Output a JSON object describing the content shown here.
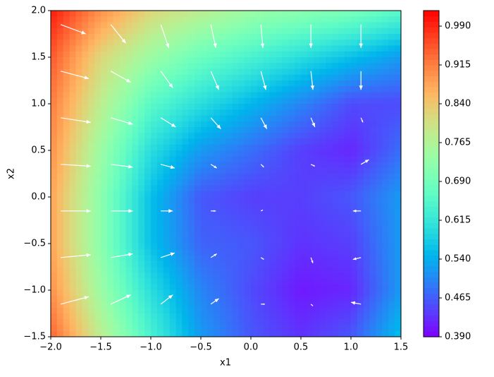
{
  "chart_data": {
    "type": "contour",
    "xlabel": "x1",
    "ylabel": "x2",
    "xlim": [
      -2,
      1.5
    ],
    "ylim": [
      -1.5,
      2
    ],
    "xticks": [
      {
        "value": -2,
        "label": "−2.0"
      },
      {
        "value": -1.5,
        "label": "−1.5"
      },
      {
        "value": -1,
        "label": "−1.0"
      },
      {
        "value": -0.5,
        "label": "−0.5"
      },
      {
        "value": 0,
        "label": "0.0"
      },
      {
        "value": 0.5,
        "label": "0.5"
      },
      {
        "value": 1,
        "label": "1.0"
      },
      {
        "value": 1.5,
        "label": "1.5"
      }
    ],
    "yticks": [
      {
        "value": -1.5,
        "label": "−1.5"
      },
      {
        "value": -1,
        "label": "−1.0"
      },
      {
        "value": -0.5,
        "label": "−0.5"
      },
      {
        "value": 0,
        "label": "0.0"
      },
      {
        "value": 0.5,
        "label": "0.5"
      },
      {
        "value": 1,
        "label": "1.0"
      },
      {
        "value": 1.5,
        "label": "1.5"
      },
      {
        "value": 2,
        "label": "2.0"
      }
    ],
    "colormap": "rainbow",
    "clim": [
      0.39,
      1.02
    ],
    "cticks": [
      {
        "value": 0.39,
        "label": "0.390"
      },
      {
        "value": 0.465,
        "label": "0.465"
      },
      {
        "value": 0.54,
        "label": "0.540"
      },
      {
        "value": 0.615,
        "label": "0.615"
      },
      {
        "value": 0.69,
        "label": "0.690"
      },
      {
        "value": 0.765,
        "label": "0.765"
      },
      {
        "value": 0.84,
        "label": "0.840"
      },
      {
        "value": 0.915,
        "label": "0.915"
      },
      {
        "value": 0.99,
        "label": "0.990"
      }
    ],
    "grid_x": [
      -2,
      -1.5,
      -1,
      -0.5,
      0,
      0.5,
      1,
      1.5
    ],
    "grid_y": [
      2,
      1.5,
      1,
      0.5,
      0,
      -0.5,
      -1,
      -1.5
    ],
    "z": [
      [
        1.0,
        0.9,
        0.82,
        0.78,
        0.74,
        0.72,
        0.7,
        0.66
      ],
      [
        0.95,
        0.82,
        0.74,
        0.68,
        0.64,
        0.6,
        0.56,
        0.52
      ],
      [
        0.92,
        0.78,
        0.66,
        0.6,
        0.55,
        0.5,
        0.45,
        0.45
      ],
      [
        0.9,
        0.74,
        0.6,
        0.52,
        0.48,
        0.44,
        0.42,
        0.48
      ],
      [
        0.88,
        0.72,
        0.56,
        0.46,
        0.44,
        0.44,
        0.46,
        0.52
      ],
      [
        0.88,
        0.72,
        0.56,
        0.47,
        0.46,
        0.43,
        0.44,
        0.52
      ],
      [
        0.9,
        0.74,
        0.6,
        0.5,
        0.45,
        0.41,
        0.42,
        0.52
      ],
      [
        0.94,
        0.78,
        0.64,
        0.52,
        0.46,
        0.43,
        0.46,
        0.56
      ]
    ],
    "quiver": {
      "color": "#ffffff",
      "x": [
        -1.9,
        -1.4,
        -0.9,
        -0.4,
        0.1,
        0.6,
        1.1
      ],
      "y": [
        1.85,
        1.35,
        0.85,
        0.35,
        -0.15,
        -0.65,
        -1.15
      ],
      "u": [
        [
          0.25,
          0.15,
          0.08,
          0.05,
          0.02,
          0,
          0
        ],
        [
          0.28,
          0.2,
          0.12,
          0.08,
          0.05,
          0.02,
          0
        ],
        [
          0.3,
          0.22,
          0.15,
          0.1,
          0.06,
          0.04,
          0.02
        ],
        [
          0.3,
          0.22,
          0.14,
          0.06,
          0.03,
          0.04,
          0.08
        ],
        [
          0.3,
          0.22,
          0.12,
          0.05,
          0.02,
          0,
          -0.08
        ],
        [
          0.3,
          0.22,
          0.14,
          0.06,
          0.03,
          0.02,
          -0.08
        ],
        [
          0.28,
          0.2,
          0.12,
          0.08,
          0.04,
          0.02,
          -0.1
        ]
      ],
      "v": [
        [
          -0.1,
          -0.2,
          -0.25,
          -0.25,
          -0.25,
          -0.25,
          -0.25
        ],
        [
          -0.08,
          -0.12,
          -0.18,
          -0.2,
          -0.2,
          -0.2,
          -0.2
        ],
        [
          -0.05,
          -0.07,
          -0.1,
          -0.12,
          -0.12,
          -0.1,
          -0.05
        ],
        [
          -0.02,
          -0.03,
          -0.04,
          -0.04,
          -0.03,
          -0.02,
          0.05
        ],
        [
          0,
          0,
          0,
          0,
          0.01,
          0,
          0
        ],
        [
          0.03,
          0.04,
          0.05,
          0.04,
          -0.02,
          -0.06,
          -0.02
        ],
        [
          0.08,
          0.1,
          0.1,
          0.06,
          0,
          -0.02,
          0.02
        ]
      ]
    }
  }
}
